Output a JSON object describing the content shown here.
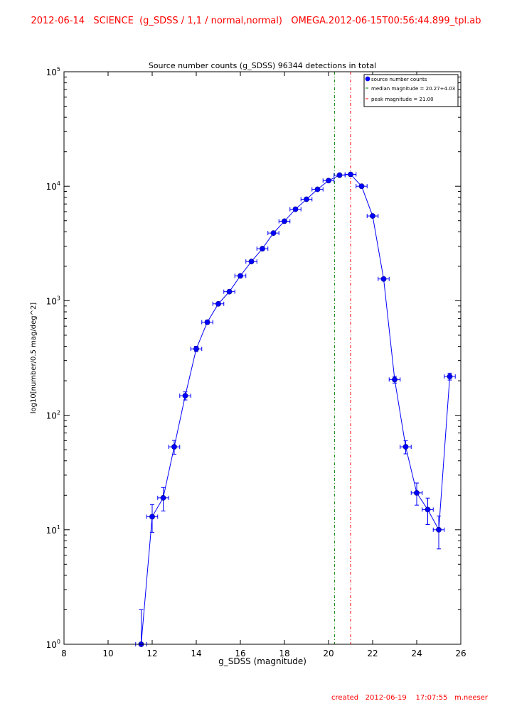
{
  "header": "2012-06-14   SCIENCE  (g_SDSS / 1,1 / normal,normal)   OMEGA.2012-06-15T00:56:44.899_tpl.ab",
  "footer": "created   2012-06-19    17:07:55   m.neeser",
  "chart_data": {
    "type": "line",
    "title": "Source number counts (g_SDSS)   96344 detections in total",
    "xlabel": "g_SDSS (magnitude)",
    "ylabel": "log10[number/0.5 mag/deg^2]",
    "xlim": [
      8,
      26
    ],
    "ylim": [
      1,
      100000
    ],
    "yscale": "log",
    "x_ticks": [
      "8",
      "10",
      "12",
      "14",
      "16",
      "18",
      "20",
      "22",
      "24",
      "26"
    ],
    "y_ticks": [
      {
        "base": "10",
        "exp": "0"
      },
      {
        "base": "10",
        "exp": "1"
      },
      {
        "base": "10",
        "exp": "2"
      },
      {
        "base": "10",
        "exp": "3"
      },
      {
        "base": "10",
        "exp": "4"
      },
      {
        "base": "10",
        "exp": "5"
      }
    ],
    "legend": {
      "position": "top-right",
      "entries": [
        "source number counts",
        "median magnitude = 20.27+4.03",
        "peak magnitude = 21.00"
      ]
    },
    "series": [
      {
        "name": "source number counts",
        "color": "#0000ff",
        "x_err": 0.25,
        "points": [
          {
            "x": 11.5,
            "y": 1,
            "lo": 1,
            "hi": 2
          },
          {
            "x": 12.0,
            "y": 13,
            "lo": 9.5,
            "hi": 16.6
          },
          {
            "x": 12.5,
            "y": 19,
            "lo": 14.6,
            "hi": 23.4
          },
          {
            "x": 13.0,
            "y": 53,
            "lo": 45.7,
            "hi": 60.3
          },
          {
            "x": 13.5,
            "y": 148,
            "lo": 136,
            "hi": 160
          },
          {
            "x": 14.0,
            "y": 380,
            "lo": 360,
            "hi": 400
          },
          {
            "x": 14.5,
            "y": 650,
            "lo": 625,
            "hi": 675
          },
          {
            "x": 15.0,
            "y": 940,
            "lo": 910,
            "hi": 970
          },
          {
            "x": 15.5,
            "y": 1200,
            "lo": 1165,
            "hi": 1235
          },
          {
            "x": 16.0,
            "y": 1650,
            "lo": 1610,
            "hi": 1690
          },
          {
            "x": 16.5,
            "y": 2200,
            "lo": 2150,
            "hi": 2250
          },
          {
            "x": 17.0,
            "y": 2850,
            "lo": 2800,
            "hi": 2900
          },
          {
            "x": 17.5,
            "y": 3900,
            "lo": 3840,
            "hi": 3960
          },
          {
            "x": 18.0,
            "y": 4950,
            "lo": 4880,
            "hi": 5020
          },
          {
            "x": 18.5,
            "y": 6300,
            "lo": 6220,
            "hi": 6380
          },
          {
            "x": 19.0,
            "y": 7700,
            "lo": 7610,
            "hi": 7790
          },
          {
            "x": 19.5,
            "y": 9400,
            "lo": 9300,
            "hi": 9500
          },
          {
            "x": 20.0,
            "y": 11200,
            "lo": 11090,
            "hi": 11310
          },
          {
            "x": 20.5,
            "y": 12500,
            "lo": 12390,
            "hi": 12610
          },
          {
            "x": 21.0,
            "y": 12700,
            "lo": 12590,
            "hi": 12810
          },
          {
            "x": 21.5,
            "y": 10000,
            "lo": 9900,
            "hi": 10100
          },
          {
            "x": 22.0,
            "y": 5500,
            "lo": 5430,
            "hi": 5570
          },
          {
            "x": 22.5,
            "y": 1550,
            "lo": 1510,
            "hi": 1590
          },
          {
            "x": 23.0,
            "y": 205,
            "lo": 191,
            "hi": 219
          },
          {
            "x": 23.5,
            "y": 53,
            "lo": 46,
            "hi": 60
          },
          {
            "x": 24.0,
            "y": 21,
            "lo": 16.4,
            "hi": 25.6
          },
          {
            "x": 24.5,
            "y": 15,
            "lo": 11.1,
            "hi": 18.9
          },
          {
            "x": 25.0,
            "y": 10,
            "lo": 6.8,
            "hi": 13.2
          },
          {
            "x": 25.5,
            "y": 218,
            "lo": 203,
            "hi": 233
          }
        ]
      }
    ],
    "vlines": [
      {
        "name": "median magnitude",
        "x": 20.27,
        "color": "#008000"
      },
      {
        "name": "peak magnitude",
        "x": 21.0,
        "color": "#ff0000"
      }
    ]
  }
}
